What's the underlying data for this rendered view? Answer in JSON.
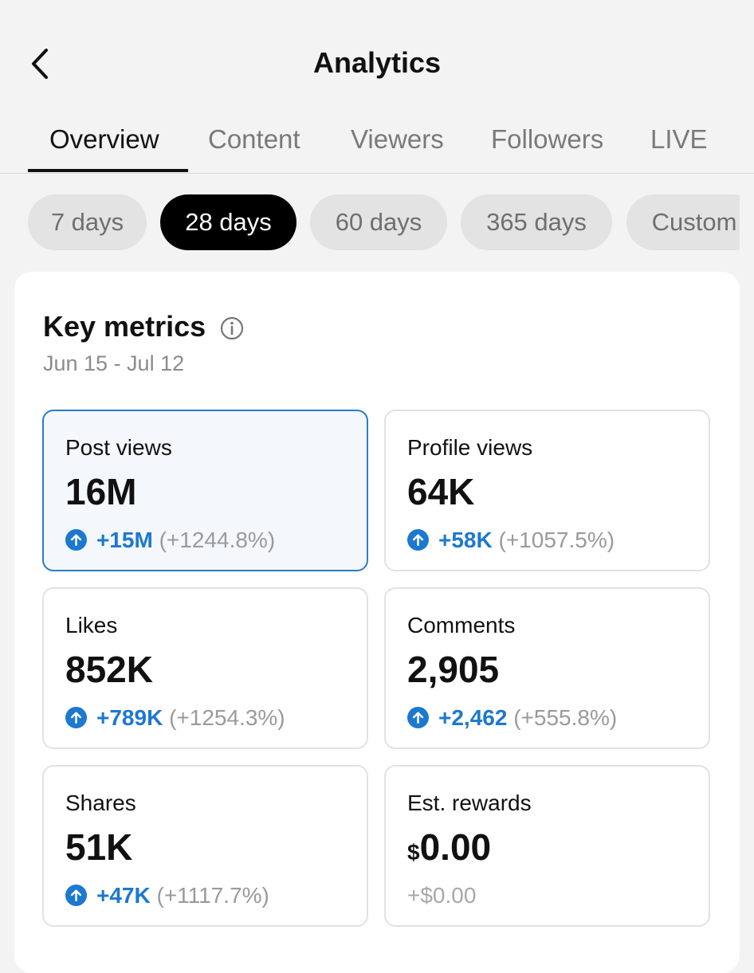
{
  "header": {
    "title": "Analytics"
  },
  "tabs": [
    {
      "label": "Overview",
      "active": true
    },
    {
      "label": "Content"
    },
    {
      "label": "Viewers"
    },
    {
      "label": "Followers"
    },
    {
      "label": "LIVE"
    }
  ],
  "ranges": [
    {
      "label": "7 days"
    },
    {
      "label": "28 days",
      "active": true
    },
    {
      "label": "60 days"
    },
    {
      "label": "365 days"
    },
    {
      "label": "Custom"
    }
  ],
  "key_metrics": {
    "title": "Key metrics",
    "date_range": "Jun 15 - Jul 12",
    "metrics": [
      {
        "label": "Post views",
        "value": "16M",
        "delta": "+15M",
        "pct": "(+1244.8%)"
      },
      {
        "label": "Profile views",
        "value": "64K",
        "delta": "+58K",
        "pct": "(+1057.5%)"
      },
      {
        "label": "Likes",
        "value": "852K",
        "delta": "+789K",
        "pct": "(+1254.3%)"
      },
      {
        "label": "Comments",
        "value": "2,905",
        "delta": "+2,462",
        "pct": "(+555.8%)"
      },
      {
        "label": "Shares",
        "value": "51K",
        "delta": "+47K",
        "pct": "(+1117.7%)"
      },
      {
        "label": "Est. rewards",
        "currency": "$",
        "value": "0.00",
        "change": "+$0.00"
      }
    ]
  },
  "colors": {
    "accent": "#1c78d0",
    "selected_border": "#2a7bc6",
    "selected_bg": "#f4f8fc",
    "background": "#f3f3f3"
  }
}
